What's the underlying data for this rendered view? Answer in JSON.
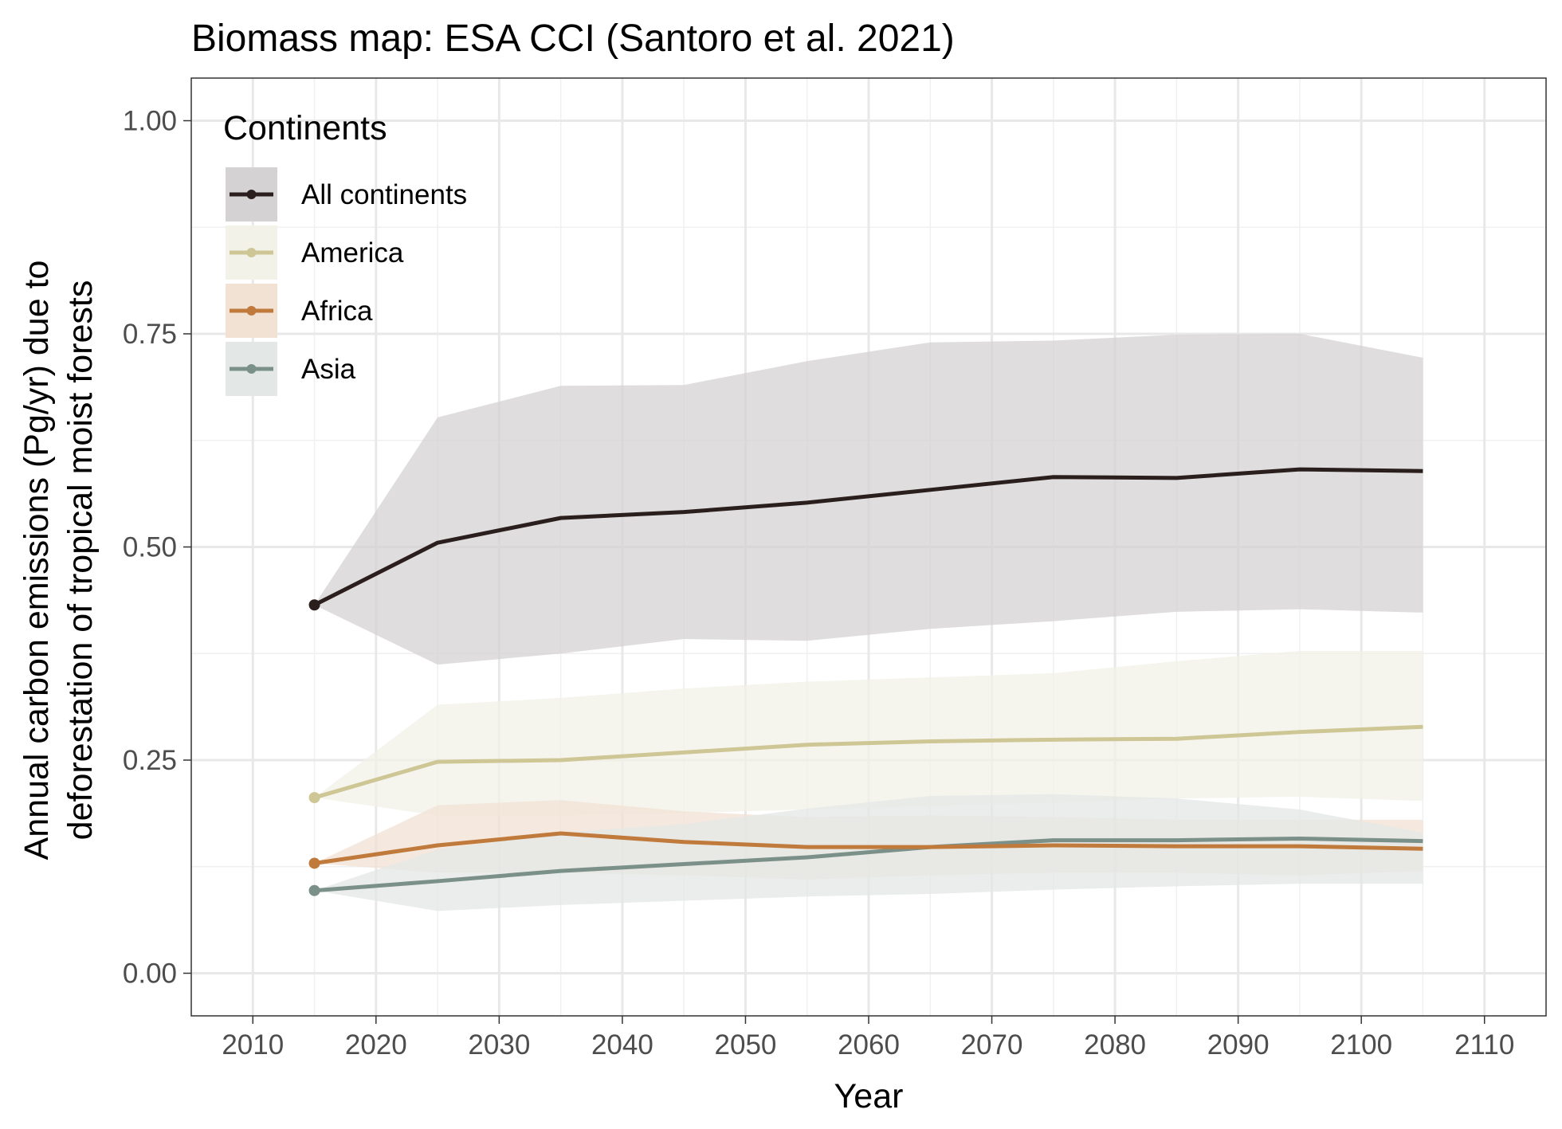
{
  "chart_data": {
    "type": "line",
    "title": "Biomass map: ESA CCI (Santoro et al. 2021)",
    "xlabel": "Year",
    "ylabel_line1": "Annual carbon emissions (Pg/yr) due to",
    "ylabel_line2": "deforestation of tropical moist forests",
    "xlim": [
      2005,
      2115
    ],
    "ylim": [
      -0.05,
      1.05
    ],
    "x_ticks": [
      2010,
      2020,
      2030,
      2040,
      2050,
      2060,
      2070,
      2080,
      2090,
      2100,
      2110
    ],
    "x_tick_labels": [
      "2010",
      "2020",
      "2030",
      "2040",
      "2050",
      "2060",
      "2070",
      "2080",
      "2090",
      "2100",
      "2110"
    ],
    "y_ticks": [
      0,
      0.25,
      0.5,
      0.75,
      1.0
    ],
    "y_tick_labels": [
      "0.00",
      "0.25",
      "0.50",
      "0.75",
      "1.00"
    ],
    "grid": true,
    "legend": {
      "title": "Continents",
      "position": "top-left"
    },
    "x": [
      2015,
      2025,
      2035,
      2045,
      2055,
      2065,
      2075,
      2085,
      2095,
      2105
    ],
    "series": [
      {
        "name": "All continents",
        "color": "#2a1f1d",
        "ribbon_color": "#d4d2d3",
        "values": [
          0.432,
          0.505,
          0.534,
          0.541,
          0.552,
          0.567,
          0.582,
          0.581,
          0.591,
          0.589
        ],
        "lower": [
          0.432,
          0.362,
          0.375,
          0.392,
          0.39,
          0.404,
          0.413,
          0.424,
          0.427,
          0.423
        ],
        "upper": [
          0.432,
          0.652,
          0.689,
          0.69,
          0.718,
          0.74,
          0.742,
          0.749,
          0.75,
          0.722
        ]
      },
      {
        "name": "America",
        "color": "#cfc696",
        "ribbon_color": "#f2f2e8",
        "values": [
          0.206,
          0.248,
          0.25,
          0.259,
          0.268,
          0.272,
          0.274,
          0.275,
          0.283,
          0.289
        ],
        "lower": [
          0.206,
          0.185,
          0.185,
          0.188,
          0.192,
          0.196,
          0.2,
          0.205,
          0.207,
          0.202
        ],
        "upper": [
          0.206,
          0.315,
          0.323,
          0.334,
          0.342,
          0.347,
          0.352,
          0.366,
          0.378,
          0.378
        ]
      },
      {
        "name": "Africa",
        "color": "#c07a3c",
        "ribbon_color": "#f2e2d4",
        "values": [
          0.129,
          0.15,
          0.164,
          0.154,
          0.148,
          0.148,
          0.15,
          0.149,
          0.149,
          0.146
        ],
        "lower": [
          0.129,
          0.118,
          0.118,
          0.115,
          0.11,
          0.115,
          0.118,
          0.118,
          0.115,
          0.12
        ],
        "upper": [
          0.129,
          0.197,
          0.203,
          0.19,
          0.183,
          0.185,
          0.183,
          0.18,
          0.18,
          0.18
        ]
      },
      {
        "name": "Asia",
        "color": "#7b9089",
        "ribbon_color": "#e3e7e5",
        "values": [
          0.097,
          0.108,
          0.12,
          0.128,
          0.136,
          0.148,
          0.156,
          0.156,
          0.158,
          0.155
        ],
        "lower": [
          0.097,
          0.073,
          0.08,
          0.085,
          0.09,
          0.093,
          0.098,
          0.102,
          0.105,
          0.105
        ],
        "upper": [
          0.097,
          0.145,
          0.165,
          0.175,
          0.193,
          0.208,
          0.21,
          0.205,
          0.192,
          0.165
        ]
      }
    ]
  }
}
